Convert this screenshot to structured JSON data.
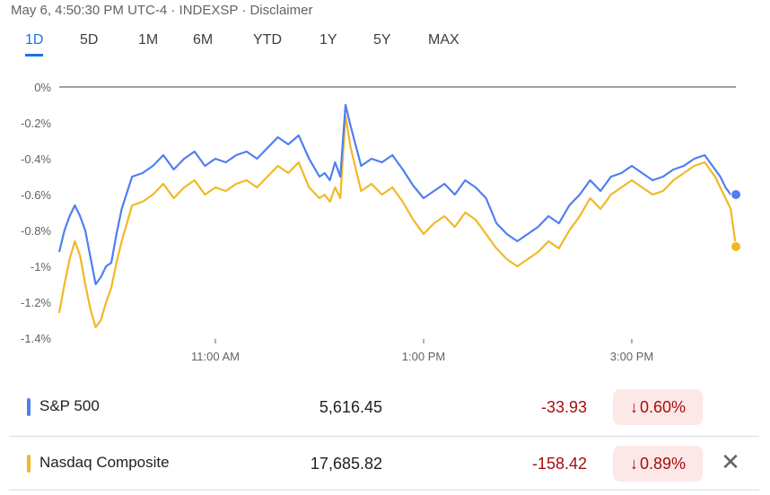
{
  "header": {
    "info": "May 6, 4:50:30 PM UTC-4 · INDEXSP · Disclaimer"
  },
  "tabs": [
    "1D",
    "5D",
    "1M",
    "6M",
    "YTD",
    "1Y",
    "5Y",
    "MAX"
  ],
  "active_tab": "1D",
  "colors": {
    "sp500": "#4f7ff0",
    "nasdaq": "#f2b824",
    "accent": "#1a73e8",
    "negative": "#a50e0e",
    "badge_bg": "#fce8e6"
  },
  "chart_data": {
    "type": "line",
    "title": "",
    "xlabel": "",
    "ylabel": "",
    "y_ticks": [
      "0%",
      "-0.2%",
      "-0.4%",
      "-0.6%",
      "-0.8%",
      "-1%",
      "-1.2%",
      "-1.4%"
    ],
    "ylim": [
      -1.4,
      0
    ],
    "x_ticks": [
      "11:00 AM",
      "1:00 PM",
      "3:00 PM"
    ],
    "x_tick_values": [
      11,
      13,
      15
    ],
    "xlim": [
      9.5,
      16.0
    ],
    "grid": "baseline only at 0%",
    "series": [
      {
        "name": "S&P 500",
        "x": [
          9.5,
          9.55,
          9.6,
          9.65,
          9.7,
          9.75,
          9.8,
          9.85,
          9.9,
          9.95,
          10.0,
          10.05,
          10.1,
          10.2,
          10.3,
          10.4,
          10.5,
          10.6,
          10.7,
          10.8,
          10.9,
          11.0,
          11.1,
          11.2,
          11.3,
          11.4,
          11.5,
          11.6,
          11.7,
          11.8,
          11.9,
          12.0,
          12.05,
          12.1,
          12.15,
          12.2,
          12.25,
          12.3,
          12.4,
          12.5,
          12.6,
          12.7,
          12.8,
          12.9,
          13.0,
          13.1,
          13.2,
          13.3,
          13.4,
          13.5,
          13.6,
          13.7,
          13.8,
          13.9,
          14.0,
          14.1,
          14.2,
          14.3,
          14.4,
          14.5,
          14.6,
          14.7,
          14.8,
          14.9,
          15.0,
          15.1,
          15.2,
          15.3,
          15.4,
          15.5,
          15.6,
          15.7,
          15.8,
          15.85,
          15.9,
          15.95,
          16.0
        ],
        "values": [
          -0.92,
          -0.8,
          -0.72,
          -0.66,
          -0.72,
          -0.8,
          -0.95,
          -1.1,
          -1.06,
          -1.0,
          -0.98,
          -0.82,
          -0.68,
          -0.5,
          -0.48,
          -0.44,
          -0.38,
          -0.46,
          -0.4,
          -0.36,
          -0.44,
          -0.4,
          -0.42,
          -0.38,
          -0.36,
          -0.4,
          -0.34,
          -0.28,
          -0.32,
          -0.27,
          -0.4,
          -0.5,
          -0.48,
          -0.52,
          -0.42,
          -0.5,
          -0.1,
          -0.22,
          -0.44,
          -0.4,
          -0.42,
          -0.38,
          -0.46,
          -0.55,
          -0.62,
          -0.58,
          -0.54,
          -0.6,
          -0.52,
          -0.56,
          -0.62,
          -0.76,
          -0.82,
          -0.86,
          -0.82,
          -0.78,
          -0.72,
          -0.76,
          -0.66,
          -0.6,
          -0.52,
          -0.58,
          -0.5,
          -0.48,
          -0.44,
          -0.48,
          -0.52,
          -0.5,
          -0.46,
          -0.44,
          -0.4,
          -0.38,
          -0.46,
          -0.5,
          -0.56,
          -0.6,
          -0.6
        ]
      },
      {
        "name": "Nasdaq Composite",
        "x": [
          9.5,
          9.55,
          9.6,
          9.65,
          9.7,
          9.75,
          9.8,
          9.85,
          9.9,
          9.95,
          10.0,
          10.05,
          10.1,
          10.2,
          10.3,
          10.4,
          10.5,
          10.6,
          10.7,
          10.8,
          10.9,
          11.0,
          11.1,
          11.2,
          11.3,
          11.4,
          11.5,
          11.6,
          11.7,
          11.8,
          11.9,
          12.0,
          12.05,
          12.1,
          12.15,
          12.2,
          12.25,
          12.3,
          12.4,
          12.5,
          12.6,
          12.7,
          12.8,
          12.9,
          13.0,
          13.1,
          13.2,
          13.3,
          13.4,
          13.5,
          13.6,
          13.7,
          13.8,
          13.9,
          14.0,
          14.1,
          14.2,
          14.3,
          14.4,
          14.5,
          14.6,
          14.7,
          14.8,
          14.9,
          15.0,
          15.1,
          15.2,
          15.3,
          15.4,
          15.5,
          15.6,
          15.7,
          15.8,
          15.85,
          15.9,
          15.95,
          16.0
        ],
        "values": [
          -1.26,
          -1.1,
          -0.96,
          -0.86,
          -0.94,
          -1.1,
          -1.24,
          -1.34,
          -1.3,
          -1.2,
          -1.12,
          -0.98,
          -0.86,
          -0.66,
          -0.64,
          -0.6,
          -0.54,
          -0.62,
          -0.56,
          -0.52,
          -0.6,
          -0.56,
          -0.58,
          -0.54,
          -0.52,
          -0.56,
          -0.5,
          -0.44,
          -0.48,
          -0.42,
          -0.56,
          -0.62,
          -0.6,
          -0.64,
          -0.56,
          -0.62,
          -0.16,
          -0.34,
          -0.58,
          -0.54,
          -0.6,
          -0.56,
          -0.64,
          -0.74,
          -0.82,
          -0.76,
          -0.72,
          -0.78,
          -0.7,
          -0.74,
          -0.82,
          -0.9,
          -0.96,
          -1.0,
          -0.96,
          -0.92,
          -0.86,
          -0.9,
          -0.8,
          -0.72,
          -0.62,
          -0.68,
          -0.6,
          -0.56,
          -0.52,
          -0.56,
          -0.6,
          -0.58,
          -0.52,
          -0.48,
          -0.44,
          -0.42,
          -0.5,
          -0.56,
          -0.62,
          -0.68,
          -0.89
        ]
      }
    ]
  },
  "legend": [
    {
      "name": "S&P 500",
      "value": "5,616.45",
      "change": "-33.93",
      "percent": "0.60%",
      "arrow": "↓",
      "color": "#4f7ff0"
    },
    {
      "name": "Nasdaq Composite",
      "value": "17,685.82",
      "change": "-158.42",
      "percent": "0.89%",
      "arrow": "↓",
      "color": "#f2b824"
    }
  ],
  "close_icon": "close-icon"
}
